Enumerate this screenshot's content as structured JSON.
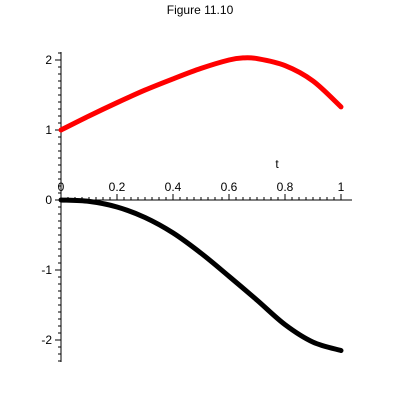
{
  "chart_data": {
    "type": "line",
    "title": "Figure 11.10",
    "xlabel": "t",
    "ylabel": "",
    "xlim": [
      0,
      1
    ],
    "ylim": [
      -2.3,
      2.15
    ],
    "x_ticks": [
      "0",
      "0.2",
      "0.4",
      "0.6",
      "0.8",
      "1"
    ],
    "x_tick_values": [
      0,
      0.2,
      0.4,
      0.6,
      0.8,
      1
    ],
    "y_ticks": [
      "2",
      "1",
      "0",
      "-1",
      "-2"
    ],
    "y_tick_values": [
      2,
      1,
      0,
      -1,
      -2
    ],
    "grid": false,
    "legend": "none",
    "series": [
      {
        "color": "#ff0000",
        "x": [
          0,
          0.1,
          0.2,
          0.3,
          0.4,
          0.5,
          0.6,
          0.65,
          0.7,
          0.8,
          0.9,
          1.0
        ],
        "y": [
          1.0,
          1.2,
          1.39,
          1.57,
          1.73,
          1.88,
          2.0,
          2.03,
          2.02,
          1.92,
          1.7,
          1.33
        ]
      },
      {
        "color": "#000000",
        "x": [
          0,
          0.1,
          0.2,
          0.3,
          0.4,
          0.5,
          0.6,
          0.7,
          0.8,
          0.9,
          1.0
        ],
        "y": [
          0,
          -0.02,
          -0.1,
          -0.25,
          -0.47,
          -0.76,
          -1.09,
          -1.43,
          -1.78,
          -2.03,
          -2.15
        ]
      }
    ]
  }
}
